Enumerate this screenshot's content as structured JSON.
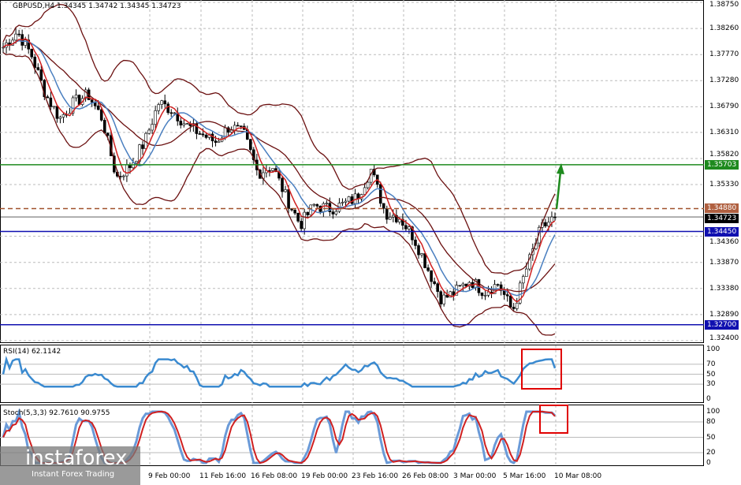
{
  "header": {
    "title": "GBPUSD,H4  1.34345 1.34742 1.34345 1.34723"
  },
  "price_axis": [
    "1.38750",
    "1.38260",
    "1.37770",
    "1.37280",
    "1.36790",
    "1.36310",
    "1.35820",
    "1.35330",
    "1.34360",
    "1.33870",
    "1.33380",
    "1.32890",
    "1.32400"
  ],
  "levels": [
    {
      "price": 1.35703,
      "label": "1.35703",
      "color": "#1e8a1e",
      "style": "solid"
    },
    {
      "price": 1.3488,
      "label": "1.34880",
      "color": "#a0522d",
      "style": "dashed"
    },
    {
      "price": 1.34723,
      "label": "1.34723",
      "color": "#000000",
      "style": "solid"
    },
    {
      "price": 1.3445,
      "label": "1.34450",
      "color": "#1010b0",
      "style": "solid"
    },
    {
      "price": 1.327,
      "label": "1.32700",
      "color": "#1010b0",
      "style": "solid"
    }
  ],
  "rsi": {
    "label": "RSI(14) 62.1142",
    "axis": [
      "100",
      "70",
      "50",
      "30",
      "0"
    ]
  },
  "stoch": {
    "label": "Stoch(5,3,3) 92.7610 90.9755",
    "axis": [
      "100",
      "80",
      "50",
      "20",
      "0"
    ]
  },
  "time_axis": [
    "9 Feb 00:00",
    "11 Feb 16:00",
    "16 Feb 08:00",
    "19 Feb 00:00",
    "23 Feb 16:00",
    "26 Feb 08:00",
    "3 Mar 00:00",
    "5 Mar 16:00",
    "10 Mar 08:00"
  ],
  "logo": {
    "brand": "instaforex",
    "tagline": "Instant Forex Trading"
  },
  "chart_data": {
    "type": "candlestick",
    "symbol": "GBPUSD",
    "timeframe": "H4",
    "ylim": [
      1.324,
      1.3875
    ],
    "close_path": [
      1.3791,
      1.382,
      1.3776,
      1.3702,
      1.3657,
      1.3687,
      1.3702,
      1.3657,
      1.3546,
      1.3569,
      1.3613,
      1.3687,
      1.3672,
      1.3643,
      1.3628,
      1.3613,
      1.3643,
      1.3628,
      1.3554,
      1.3569,
      1.3509,
      1.3458,
      1.3495,
      1.3487,
      1.3495,
      1.3509,
      1.3561,
      1.348,
      1.3472,
      1.3435,
      1.3376,
      1.3317,
      1.3332,
      1.3354,
      1.3332,
      1.3347,
      1.3295,
      1.3376,
      1.345,
      1.34723
    ]
  }
}
